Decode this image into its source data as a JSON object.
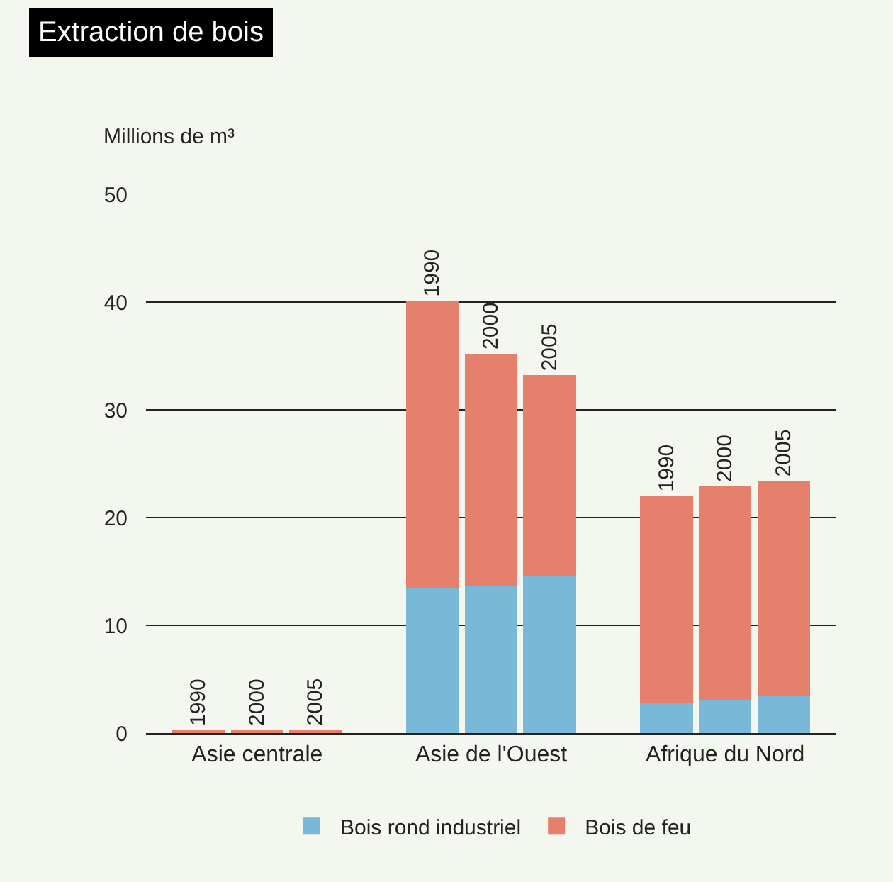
{
  "chart_data": {
    "type": "bar",
    "stacked": true,
    "title": "Extraction de bois",
    "ylabel": "Millions de m³",
    "categories": [
      null,
      "Asie centrale",
      null,
      null,
      "Asie de l'Ouest",
      null,
      null,
      "Afrique du Nord",
      null
    ],
    "annotations": [
      "1990",
      "2000",
      "2005",
      "1990",
      "2000",
      "2005",
      "1990",
      "2000",
      "2005"
    ],
    "series": [
      {
        "name": "Bois rond industriel",
        "color": "#7ab8d9",
        "values": [
          0,
          0,
          0,
          13.4,
          13.7,
          14.6,
          2.8,
          3.1,
          3.5
        ]
      },
      {
        "name": "Bois de feu",
        "color": "#e4806b",
        "values": [
          0.2,
          0.2,
          0.3,
          26.7,
          21.5,
          18.6,
          19.2,
          19.8,
          19.9
        ]
      }
    ],
    "ylim": [
      0,
      50
    ],
    "yticks": [
      0,
      10,
      20,
      30,
      40,
      50
    ],
    "grid": "y",
    "legend": "bottom"
  }
}
